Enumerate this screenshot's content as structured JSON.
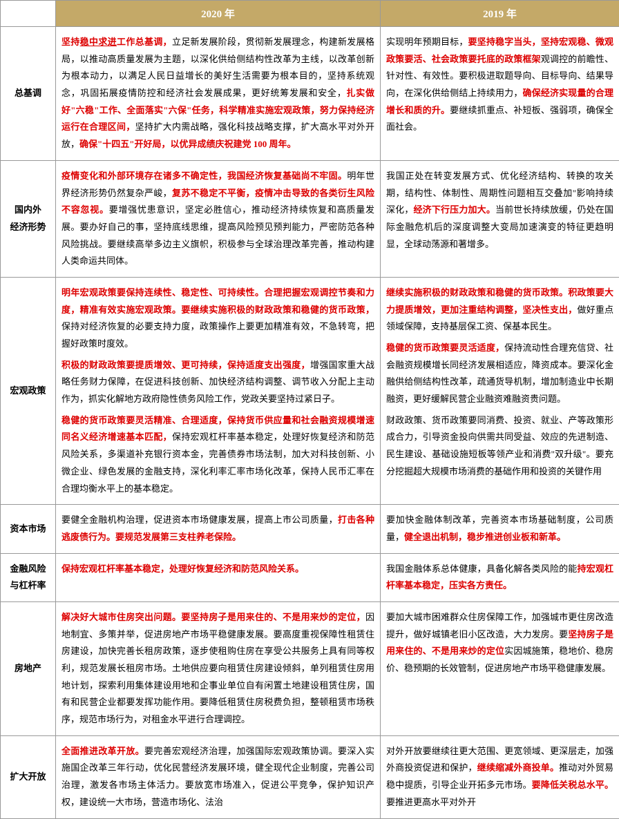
{
  "headers": {
    "blank": "",
    "y2020": "2020 年",
    "y2019": "2019 年"
  },
  "rows": [
    {
      "label": "总基调",
      "c2020": [
        [
          {
            "t": "坚持",
            "c": "red"
          },
          {
            "t": "稳中求进",
            "c": "red u"
          },
          {
            "t": "工作总基调，",
            "c": "red"
          },
          {
            "t": "立足新发展阶段，贯彻新发展理念，构建新发展格局，以推动高质量发展为主题，以深化供给侧结构性改革为主线，以改革创新为根本动力，以满足人民日益增长的美好生活需要为根本目的，坚持系统观念，巩固拓展疫情防控和经济社会发展成果，更好统筹发展和安全，"
          },
          {
            "t": "扎实做好\"六稳\"工作、全面落实\"六保\"任务，科学精准实施宏观政策，努力保持经济运行在合理区间，",
            "c": "red"
          },
          {
            "t": "坚持扩大内需战略，强化科技战略支撑，扩大高水平对外开放，"
          },
          {
            "t": "确保\"十四五\"开好局，以优异成绩庆祝建党 100 周年。",
            "c": "red"
          }
        ]
      ],
      "c2019": [
        [
          {
            "t": "实现明年预期目标，"
          },
          {
            "t": "要坚持稳字当头，坚持宏观稳、微观政策要活、社会政策要托底的政策框架",
            "c": "red"
          },
          {
            "t": "观调控的前瞻性、针对性、有效性。要积极进取题导向、目标导向、结果导向，在深化供给侧结上持续用力，"
          },
          {
            "t": "确保经济实现量的合理增长和质的升。",
            "c": "red"
          },
          {
            "t": "要继续抓重点、补短板、强弱项，确保全面社会。"
          }
        ]
      ]
    },
    {
      "label": "国内外\n经济形势",
      "c2020": [
        [
          {
            "t": "疫情变化和外部环境存在诸多不确定性，我国经济恢复基础尚不牢固。",
            "c": "red"
          },
          {
            "t": "明年世界经济形势仍然复杂严峻，"
          },
          {
            "t": "复苏不稳定不平衡，疫情冲击导致的各类衍生风险不容忽视。",
            "c": "red"
          },
          {
            "t": "要增强忧患意识，坚定必胜信心，推动经济持续恢复和高质量发展。要办好自己的事，坚持底线思维，提高风险预见预判能力，严密防范各种风险挑战。要继续高举多边主义旗帜，积极参与全球治理改革完善，推动构建人类命运共同体。"
          }
        ]
      ],
      "c2019": [
        [
          {
            "t": "我国正处在转变发展方式、优化经济结构、转换的攻关期，结构性、体制性、周期性问题相互交叠加\"影响持续深化，"
          },
          {
            "t": "经济下行压力加大。",
            "c": "red"
          },
          {
            "t": "当前世长持续放缓，仍处在国际金融危机后的深度调整大变局加速演变的特征更趋明显，全球动荡源和著增多。"
          }
        ]
      ]
    },
    {
      "label": "宏观政策",
      "c2020": [
        [
          {
            "t": "明年宏观政策要保持连续性、稳定性、可持续性。合理把握宏观调控节奏和力度，精准有效实施宏观政策。要继续实施积极的财政政策和稳健的货币政策，",
            "c": "red"
          },
          {
            "t": "保持对经济恢复的必要支持力度，政策操作上要更加精准有效，不急转弯，把握好政策时度效。"
          }
        ],
        [
          {
            "t": "积极的财政政策要提质增效、更可持续，保持适度支出强度，",
            "c": "red"
          },
          {
            "t": "增强国家重大战略任务财力保障，在促进科技创新、加快经济结构调整、调节收入分配上主动作为，抓实化解地方政府隐性债务风险工作，党政关要坚持过紧日子。"
          }
        ],
        [
          {
            "t": "稳健的货币政策要灵活精准、合理适度，保持货币供应量和社会融资规模增速同名义经济增速基本匹配，",
            "c": "red"
          },
          {
            "t": "保持宏观杠杆率基本稳定，处理好恢复经济和防范风险关系，多渠道补充银行资本金，完善债券市场法制，加大对科技创新、小微企业、绿色发展的金融支持，深化利率汇率市场化改革，保持人民币汇率在合理均衡水平上的基本稳定。"
          }
        ]
      ],
      "c2019": [
        [
          {
            "t": "继续实施积极的财政政策和稳健的货币政策。积政策要大力提质增效，更加注重结构调整，坚决性支出，",
            "c": "red"
          },
          {
            "t": "做好重点领域保障，支持基层保工资、保基本民生。"
          }
        ],
        [
          {
            "t": "稳健的货币政策要灵活适度，",
            "c": "red"
          },
          {
            "t": "保持流动性合理充信贷、社会融资规模增长同经济发展相适应，降资成本。要深化金融供给侧结构性改革，疏通货导机制，增加制造业中长期融资，更好缓解民营企业融资难融资贵问题。"
          }
        ],
        [
          {
            "t": "财政政策、货币政策要同消费、投资、就业、产等政策形成合力，引导资金投向供需共同受益、效应的先进制造、民生建设、基础设施短板等领产业和消费\"双升级\"。要充分挖掘超大规模市场消费的基础作用和投资的关键作用"
          }
        ]
      ]
    },
    {
      "label": "资本市场",
      "c2020": [
        [
          {
            "t": "要健全金融机构治理，促进资本市场健康发展，提高上市公司质量，"
          },
          {
            "t": "打击各种逃废债行为。要规范发展第三支柱养老保险。",
            "c": "red"
          }
        ]
      ],
      "c2019": [
        [
          {
            "t": "要加快金融体制改革，完善资本市场基础制度，公司质量，"
          },
          {
            "t": "健全退出机制，稳步推进创业板和新革。",
            "c": "red"
          }
        ]
      ]
    },
    {
      "label": "金融风险\n与杠杆率",
      "c2020": [
        [
          {
            "t": "保持宏观杠杆率基本稳定，处理好恢复经济和防范风险关系。",
            "c": "red"
          }
        ]
      ],
      "c2019": [
        [
          {
            "t": "我国金融体系总体健康，具备化解各类风险的能"
          },
          {
            "t": "持宏观杠杆率基本稳定，压实各方责任。",
            "c": "red"
          }
        ]
      ]
    },
    {
      "label": "房地产",
      "c2020": [
        [
          {
            "t": "解决好大城市住房突出问题。要坚持房子是用来住的、不是用来炒的定位，",
            "c": "red"
          },
          {
            "t": "因地制宜、多策并举，促进房地产市场平稳健康发展。要高度重视保障性租赁住房建设，加快完善长租房政策，逐步使租购住房在享受公共服务上具有同等权利，规范发展长租房市场。土地供应要向租赁住房建设倾斜，单列租赁住房用地计划，探索利用集体建设用地和企事业单位自有闲置土地建设租赁住房，国有和民营企业都要发挥功能作用。要降低租赁住房税费负担，整顿租赁市场秩序，规范市场行为，对租金水平进行合理调控。"
          }
        ]
      ],
      "c2019": [
        [
          {
            "t": "要加大城市困难群众住房保障工作，加强城市更住房改造提升，做好城镇老旧小区改造，大力发房。要"
          },
          {
            "t": "坚持房子是用来住的、不是用来炒的定位",
            "c": "red"
          },
          {
            "t": "实因城施策，稳地价、稳房价、稳预期的长效管制，促进房地产市场平稳健康发展。"
          }
        ]
      ]
    },
    {
      "label": "扩大开放",
      "c2020": [
        [
          {
            "t": "全面推进改革开放。",
            "c": "red"
          },
          {
            "t": "要完善宏观经济治理，加强国际宏观政策协调。要深入实施国企改革三年行动，优化民营经济发展环境，健全现代企业制度，完善公司治理，激发各市场主体活力。要放宽市场准入，促进公平竞争，保护知识产权，建设统一大市场，营造市场化、法治"
          }
        ]
      ],
      "c2019": [
        [
          {
            "t": "对外开放要继续往更大范围、更宽领域、更深层走，加强外商投资促进和保护，"
          },
          {
            "t": "继续缩减外商投单。",
            "c": "red"
          },
          {
            "t": "推动对外贸易稳中提质，引导企业开拓多元市场。"
          },
          {
            "t": "要降低关税总水平。",
            "c": "red"
          },
          {
            "t": "要推进更高水平对外开"
          }
        ]
      ]
    }
  ]
}
